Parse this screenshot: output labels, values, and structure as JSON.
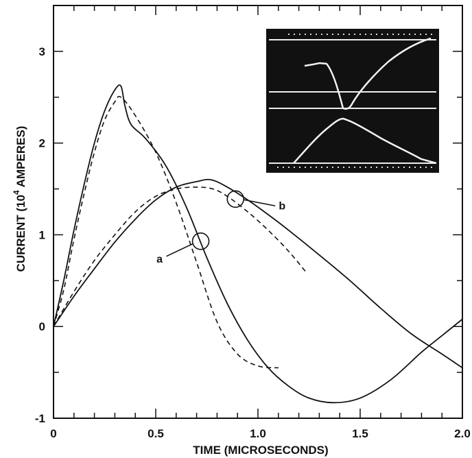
{
  "chart_data": {
    "type": "line",
    "title": "",
    "xlabel": "TIME (MICROSECONDS)",
    "ylabel_prefix": "CURRENT (10",
    "ylabel_exponent": "4",
    "ylabel_suffix": " AMPERES)",
    "xlim": [
      0,
      2.0
    ],
    "ylim": [
      -1,
      3.5
    ],
    "xticks": [
      0,
      0.5,
      1.0,
      1.5,
      2.0
    ],
    "xtick_labels": [
      "0",
      "0.5",
      "1.0",
      "1.5",
      "2.0"
    ],
    "yticks": [
      -1,
      0,
      1,
      2,
      3
    ],
    "ytick_labels": [
      "-1",
      "0",
      "1",
      "2",
      "3"
    ],
    "grid": false,
    "legend": "none",
    "annotations": [
      {
        "label": "a",
        "target": [
          0.72,
          0.93
        ]
      },
      {
        "label": "b",
        "target": [
          0.89,
          1.39
        ]
      }
    ],
    "series": [
      {
        "style": "solid",
        "group": "a",
        "x": [
          0,
          0.05,
          0.1,
          0.15,
          0.2,
          0.25,
          0.3,
          0.33,
          0.35,
          0.38,
          0.45,
          0.55,
          0.65,
          0.75,
          0.85,
          0.95,
          1.05,
          1.15,
          1.25,
          1.37,
          1.5,
          1.65,
          1.8,
          1.9,
          2.0
        ],
        "y": [
          0,
          0.5,
          1.05,
          1.55,
          2.0,
          2.35,
          2.58,
          2.62,
          2.4,
          2.2,
          2.05,
          1.75,
          1.3,
          0.75,
          0.25,
          -0.15,
          -0.45,
          -0.65,
          -0.78,
          -0.83,
          -0.78,
          -0.58,
          -0.28,
          -0.1,
          0.08
        ]
      },
      {
        "style": "dashed",
        "group": "a",
        "x": [
          0,
          0.05,
          0.1,
          0.15,
          0.2,
          0.25,
          0.3,
          0.33,
          0.4,
          0.5,
          0.6,
          0.7,
          0.8,
          0.9,
          1.0,
          1.1
        ],
        "y": [
          0,
          0.4,
          0.95,
          1.45,
          1.9,
          2.25,
          2.45,
          2.5,
          2.3,
          1.9,
          1.35,
          0.7,
          0.05,
          -0.3,
          -0.43,
          -0.45
        ]
      },
      {
        "style": "solid",
        "group": "b",
        "x": [
          0,
          0.1,
          0.2,
          0.3,
          0.4,
          0.5,
          0.6,
          0.7,
          0.77,
          0.85,
          0.95,
          1.05,
          1.15,
          1.3,
          1.45,
          1.6,
          1.75,
          1.9,
          2.0
        ],
        "y": [
          0,
          0.33,
          0.63,
          0.92,
          1.17,
          1.38,
          1.52,
          1.58,
          1.6,
          1.52,
          1.38,
          1.22,
          1.05,
          0.78,
          0.5,
          0.2,
          -0.08,
          -0.3,
          -0.45
        ]
      },
      {
        "style": "dashed",
        "group": "b",
        "x": [
          0,
          0.1,
          0.2,
          0.3,
          0.4,
          0.5,
          0.6,
          0.7,
          0.78,
          0.85,
          0.95,
          1.05,
          1.15,
          1.24
        ],
        "y": [
          0,
          0.38,
          0.72,
          1.0,
          1.25,
          1.42,
          1.5,
          1.52,
          1.5,
          1.42,
          1.25,
          1.05,
          0.82,
          0.58
        ]
      }
    ],
    "inset": {
      "type": "oscilloscope-photograph",
      "background": "#111111",
      "trace_color": "#f2f2f2"
    }
  }
}
